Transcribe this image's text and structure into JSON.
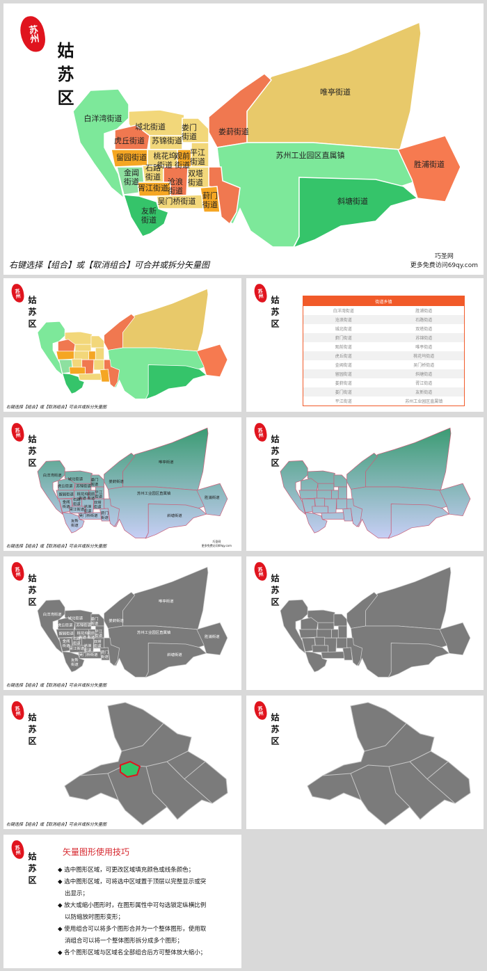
{
  "seal": "苏州",
  "title": "姑苏区",
  "districts": [
    "白洋湾街道",
    "城北街道",
    "娄门街道",
    "虎丘街道",
    "苏锦街道",
    "留园街道",
    "桃花坞街道",
    "观前街道",
    "平江街道",
    "金阊街道",
    "石路街道",
    "胥江街道",
    "沧浪街道",
    "双塔街道",
    "葑门街道",
    "吴门桥街道",
    "友新街道",
    "娄葑街道",
    "唯亭街道",
    "苏州工业园区直属镇",
    "胜浦街道",
    "斜塘街道"
  ],
  "footer": "右键选择【组合】或【取消组合】可合并或拆分矢量图",
  "watermark": {
    "name": "巧圣网",
    "url": "更多免费访问69qy.com"
  },
  "table": {
    "header": "街道乡镇",
    "rows": [
      [
        "白洋湾街道",
        "胜浦街道"
      ],
      [
        "沧浪街道",
        "石路街道"
      ],
      [
        "城北街道",
        "双塔街道"
      ],
      [
        "葑门街道",
        "苏锦街道"
      ],
      [
        "观前街道",
        "唯亭街道"
      ],
      [
        "虎丘街道",
        "桃花坞街道"
      ],
      [
        "金阊街道",
        "吴门桥街道"
      ],
      [
        "留园街道",
        "斜塘街道"
      ],
      [
        "娄葑街道",
        "胥江街道"
      ],
      [
        "娄门街道",
        "友新街道"
      ],
      [
        "平江街道",
        "苏州工业园区直属镇"
      ]
    ]
  },
  "tips": {
    "title": "矢量图形使用技巧",
    "items": [
      "选中图形区域，可更改区域填充颜色或线条颜色；",
      "选中图形区域，可将选中区域置于顶层以完整显示或突出显示；",
      "放大或缩小图形时，在图形属性中可勾选锁定纵横比例以防缩放时图形变形；",
      "使用组合可以将多个图形合并为一个整体图形，使用取消组合可以将一个整体图形拆分成多个图形；",
      "各个图形区域与区域名全部组合后方可整体放大缩小；"
    ]
  }
}
